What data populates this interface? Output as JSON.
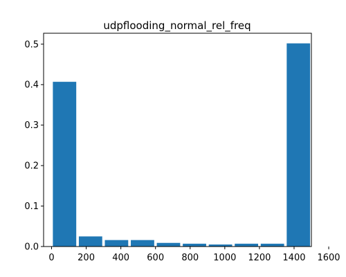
{
  "chart_data": {
    "type": "bar",
    "title": "udpflooding_normal_rel_freq",
    "xlabel": "",
    "ylabel": "",
    "bins": [
      {
        "x0": 0,
        "x1": 150,
        "value": 0.407
      },
      {
        "x0": 150,
        "x1": 300,
        "value": 0.025
      },
      {
        "x0": 300,
        "x1": 450,
        "value": 0.016
      },
      {
        "x0": 450,
        "x1": 600,
        "value": 0.016
      },
      {
        "x0": 600,
        "x1": 750,
        "value": 0.009
      },
      {
        "x0": 750,
        "x1": 900,
        "value": 0.007
      },
      {
        "x0": 900,
        "x1": 1050,
        "value": 0.005
      },
      {
        "x0": 1050,
        "x1": 1200,
        "value": 0.007
      },
      {
        "x0": 1200,
        "x1": 1350,
        "value": 0.007
      },
      {
        "x0": 1350,
        "x1": 1500,
        "value": 0.502
      }
    ],
    "xlim": [
      -46,
      1500
    ],
    "ylim": [
      0,
      0.527
    ],
    "xticks": [
      {
        "value": 0,
        "label": "0"
      },
      {
        "value": 200,
        "label": "200"
      },
      {
        "value": 400,
        "label": "400"
      },
      {
        "value": 600,
        "label": "600"
      },
      {
        "value": 800,
        "label": "800"
      },
      {
        "value": 1000,
        "label": "1000"
      },
      {
        "value": 1200,
        "label": "1200"
      },
      {
        "value": 1400,
        "label": "1400"
      },
      {
        "value": 1600,
        "label": "1600"
      }
    ],
    "yticks": [
      {
        "value": 0.0,
        "label": "0.0"
      },
      {
        "value": 0.1,
        "label": "0.1"
      },
      {
        "value": 0.2,
        "label": "0.2"
      },
      {
        "value": 0.3,
        "label": "0.3"
      },
      {
        "value": 0.4,
        "label": "0.4"
      },
      {
        "value": 0.5,
        "label": "0.5"
      }
    ],
    "bar_color": "#1f77b4",
    "grid": false,
    "legend": "none"
  }
}
